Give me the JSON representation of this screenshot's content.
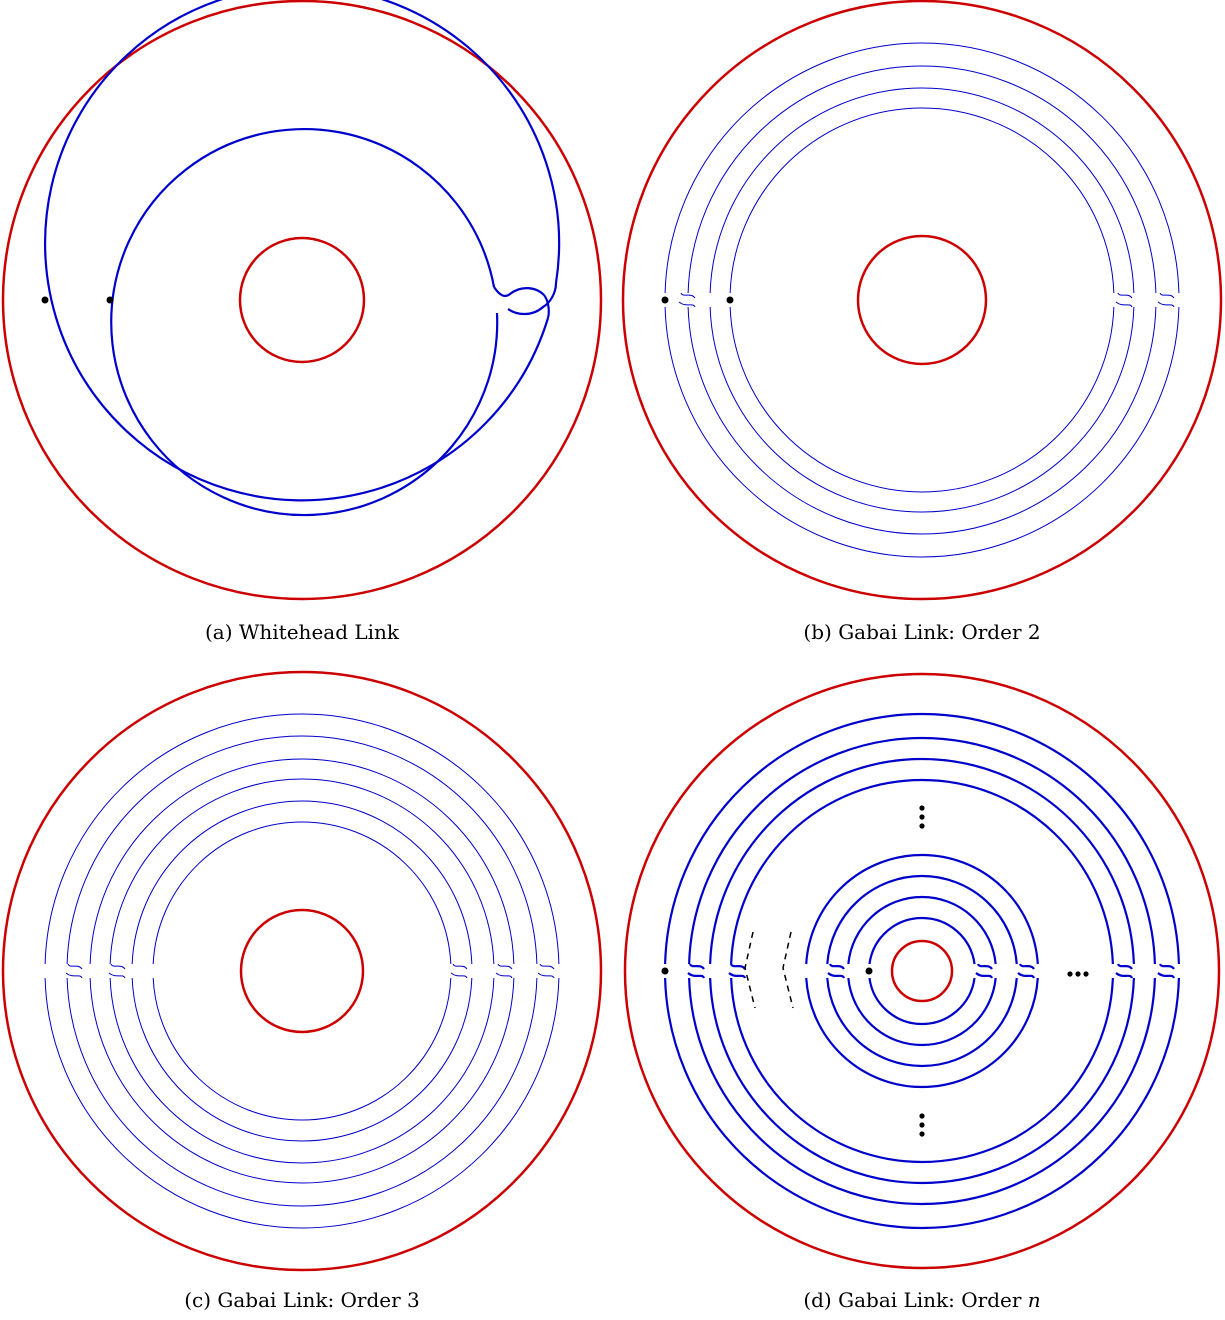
{
  "colors": {
    "outer_torus": "#cc0000",
    "strand": "#0000cc",
    "marker": "#000000"
  },
  "panels": [
    {
      "id": "a",
      "caption_label": "(a)",
      "caption_text": "Whitehead Link",
      "caption_var": ""
    },
    {
      "id": "b",
      "caption_label": "(b)",
      "caption_text": "Gabai Link: Order 2",
      "caption_var": ""
    },
    {
      "id": "c",
      "caption_label": "(c)",
      "caption_text": "Gabai Link: Order 3",
      "caption_var": ""
    },
    {
      "id": "d",
      "caption_label": "(d)",
      "caption_text": "Gabai Link: Order ",
      "caption_var": "n"
    }
  ]
}
